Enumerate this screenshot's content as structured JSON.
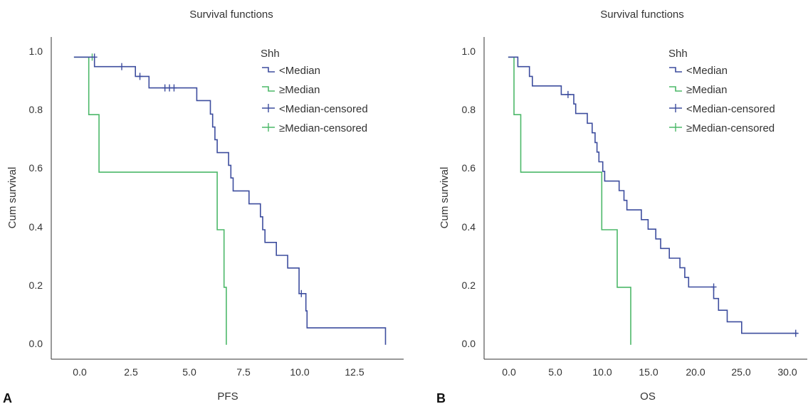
{
  "colors": {
    "below_median": "#3d4d9e",
    "above_median": "#4cb869",
    "axis": "#333333"
  },
  "chart_data": [
    {
      "panel_label": "A",
      "type": "line",
      "subtype": "kaplan-meier-step",
      "title": "Survival functions",
      "xlabel": "PFS",
      "ylabel": "Cum survival",
      "xlim": [
        -1.0,
        14.5
      ],
      "ylim": [
        -0.05,
        1.07
      ],
      "x_ticks": [
        0.0,
        2.5,
        5.0,
        7.5,
        10.0,
        12.5
      ],
      "x_tick_labels": [
        "0.0",
        "2.5",
        "5.0",
        "7.5",
        "10.0",
        "12.5"
      ],
      "y_ticks": [
        0.0,
        0.2,
        0.4,
        0.6,
        0.8,
        1.0
      ],
      "y_tick_labels": [
        "0.0",
        "0.2",
        "0.4",
        "0.6",
        "0.8",
        "1.0"
      ],
      "legend": {
        "title": "Shh",
        "position": "top-right",
        "entries": [
          "<Median",
          "≥Median",
          "<Median-censored",
          "≥Median-censored"
        ]
      },
      "series": [
        {
          "name": "<Median",
          "color_key": "below_median",
          "steps": [
            [
              0.0,
              1.0
            ],
            [
              0.9,
              1.0
            ],
            [
              0.9,
              0.967
            ],
            [
              2.7,
              0.967
            ],
            [
              2.7,
              0.933
            ],
            [
              3.3,
              0.933
            ],
            [
              3.3,
              0.893
            ],
            [
              5.4,
              0.893
            ],
            [
              5.4,
              0.849
            ],
            [
              6.0,
              0.849
            ],
            [
              6.0,
              0.802
            ],
            [
              6.1,
              0.802
            ],
            [
              6.1,
              0.757
            ],
            [
              6.2,
              0.757
            ],
            [
              6.2,
              0.713
            ],
            [
              6.3,
              0.713
            ],
            [
              6.3,
              0.668
            ],
            [
              6.8,
              0.668
            ],
            [
              6.8,
              0.624
            ],
            [
              6.9,
              0.624
            ],
            [
              6.9,
              0.58
            ],
            [
              7.0,
              0.58
            ],
            [
              7.0,
              0.535
            ],
            [
              7.7,
              0.535
            ],
            [
              7.7,
              0.49
            ],
            [
              8.2,
              0.49
            ],
            [
              8.2,
              0.445
            ],
            [
              8.3,
              0.445
            ],
            [
              8.3,
              0.4
            ],
            [
              8.4,
              0.4
            ],
            [
              8.4,
              0.356
            ],
            [
              8.9,
              0.356
            ],
            [
              8.9,
              0.311
            ],
            [
              9.4,
              0.311
            ],
            [
              9.4,
              0.267
            ],
            [
              9.9,
              0.267
            ],
            [
              9.9,
              0.178
            ],
            [
              10.2,
              0.178
            ],
            [
              10.2,
              0.118
            ],
            [
              10.25,
              0.118
            ],
            [
              10.25,
              0.059
            ],
            [
              13.7,
              0.059
            ],
            [
              13.7,
              0.0
            ]
          ],
          "censored": [
            [
              0.9,
              1.0
            ],
            [
              2.1,
              0.967
            ],
            [
              2.9,
              0.933
            ],
            [
              4.0,
              0.893
            ],
            [
              4.2,
              0.893
            ],
            [
              4.4,
              0.893
            ],
            [
              10.0,
              0.178
            ]
          ]
        },
        {
          "name": "≥Median",
          "color_key": "above_median",
          "steps": [
            [
              0.0,
              1.0
            ],
            [
              0.65,
              1.0
            ],
            [
              0.65,
              0.8
            ],
            [
              1.1,
              0.8
            ],
            [
              1.1,
              0.6
            ],
            [
              6.3,
              0.6
            ],
            [
              6.3,
              0.4
            ],
            [
              6.6,
              0.4
            ],
            [
              6.6,
              0.2
            ],
            [
              6.7,
              0.2
            ],
            [
              6.7,
              0.0
            ]
          ],
          "censored": [
            [
              0.8,
              1.0
            ]
          ]
        }
      ]
    },
    {
      "panel_label": "B",
      "type": "line",
      "subtype": "kaplan-meier-step",
      "title": "Survival functions",
      "xlabel": "OS",
      "ylabel": "Cum survival",
      "xlim": [
        -2.5,
        31.0
      ],
      "ylim": [
        -0.05,
        1.07
      ],
      "x_ticks": [
        0.0,
        5.0,
        10.0,
        15.0,
        20.0,
        25.0,
        30.0
      ],
      "x_tick_labels": [
        "0.0",
        "5.0",
        "10.0",
        "15.0",
        "20.0",
        "25.0",
        "30.0"
      ],
      "y_ticks": [
        0.0,
        0.2,
        0.4,
        0.6,
        0.8,
        1.0
      ],
      "y_tick_labels": [
        "0.0",
        "0.2",
        "0.4",
        "0.6",
        "0.8",
        "1.0"
      ],
      "legend": {
        "title": "Shh",
        "position": "top-right",
        "entries": [
          "<Median",
          "≥Median",
          "<Median-censored",
          "≥Median-censored"
        ]
      },
      "series": [
        {
          "name": "<Median",
          "color_key": "below_median",
          "steps": [
            [
              0.0,
              1.0
            ],
            [
              1.0,
              1.0
            ],
            [
              1.0,
              0.967
            ],
            [
              2.2,
              0.967
            ],
            [
              2.2,
              0.933
            ],
            [
              2.5,
              0.933
            ],
            [
              2.5,
              0.9
            ],
            [
              5.5,
              0.9
            ],
            [
              5.5,
              0.87
            ],
            [
              6.8,
              0.87
            ],
            [
              6.8,
              0.837
            ],
            [
              7.0,
              0.837
            ],
            [
              7.0,
              0.804
            ],
            [
              8.2,
              0.804
            ],
            [
              8.2,
              0.77
            ],
            [
              8.7,
              0.77
            ],
            [
              8.7,
              0.737
            ],
            [
              9.0,
              0.737
            ],
            [
              9.0,
              0.703
            ],
            [
              9.2,
              0.703
            ],
            [
              9.2,
              0.67
            ],
            [
              9.4,
              0.67
            ],
            [
              9.4,
              0.636
            ],
            [
              9.8,
              0.636
            ],
            [
              9.8,
              0.603
            ],
            [
              10.0,
              0.603
            ],
            [
              10.0,
              0.569
            ],
            [
              11.5,
              0.569
            ],
            [
              11.5,
              0.536
            ],
            [
              12.0,
              0.536
            ],
            [
              12.0,
              0.502
            ],
            [
              12.3,
              0.502
            ],
            [
              12.3,
              0.469
            ],
            [
              13.8,
              0.469
            ],
            [
              13.8,
              0.435
            ],
            [
              14.5,
              0.435
            ],
            [
              14.5,
              0.402
            ],
            [
              15.3,
              0.402
            ],
            [
              15.3,
              0.368
            ],
            [
              15.8,
              0.368
            ],
            [
              15.8,
              0.335
            ],
            [
              16.7,
              0.335
            ],
            [
              16.7,
              0.301
            ],
            [
              17.8,
              0.301
            ],
            [
              17.8,
              0.268
            ],
            [
              18.3,
              0.268
            ],
            [
              18.3,
              0.234
            ],
            [
              18.7,
              0.234
            ],
            [
              18.7,
              0.201
            ],
            [
              21.3,
              0.201
            ],
            [
              21.3,
              0.161
            ],
            [
              21.8,
              0.161
            ],
            [
              21.8,
              0.12
            ],
            [
              22.7,
              0.12
            ],
            [
              22.7,
              0.08
            ],
            [
              24.2,
              0.08
            ],
            [
              24.2,
              0.04
            ],
            [
              30.0,
              0.04
            ]
          ],
          "censored": [
            [
              6.2,
              0.87
            ],
            [
              21.3,
              0.201
            ],
            [
              29.8,
              0.04
            ]
          ]
        },
        {
          "name": "≥Median",
          "color_key": "above_median",
          "steps": [
            [
              0.0,
              1.0
            ],
            [
              0.6,
              1.0
            ],
            [
              0.6,
              0.8
            ],
            [
              1.3,
              0.8
            ],
            [
              1.3,
              0.6
            ],
            [
              9.7,
              0.6
            ],
            [
              9.7,
              0.4
            ],
            [
              11.3,
              0.4
            ],
            [
              11.3,
              0.2
            ],
            [
              12.7,
              0.2
            ],
            [
              12.7,
              0.0
            ]
          ],
          "censored": []
        }
      ]
    }
  ]
}
